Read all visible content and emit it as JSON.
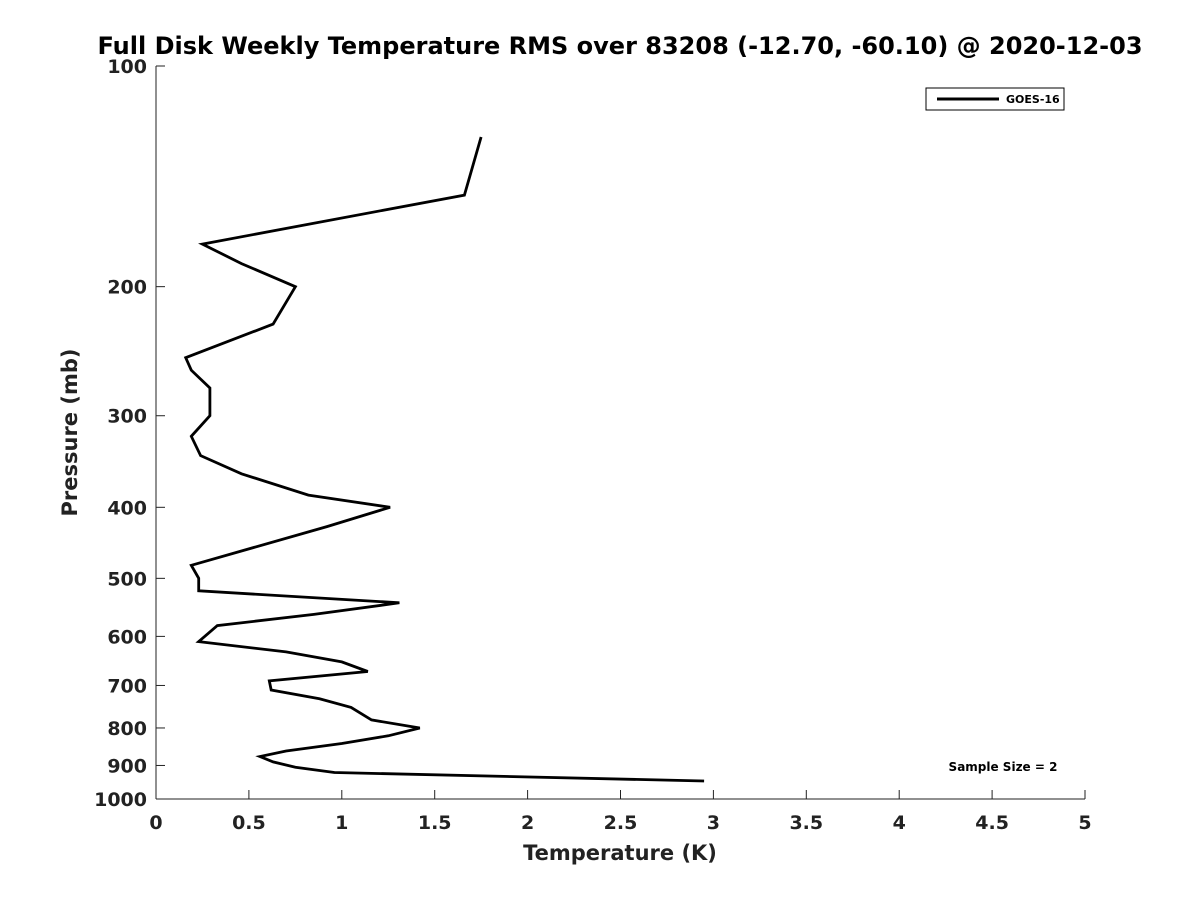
{
  "chart_data": {
    "type": "line",
    "title": "Full Disk Weekly Temperature RMS over 83208 (-12.70, -60.10) @ 2020-12-03",
    "xlabel": "Temperature (K)",
    "ylabel": "Pressure (mb)",
    "xlim": [
      0,
      5
    ],
    "ylim": [
      100,
      1000
    ],
    "y_scale": "log",
    "y_reversed": true,
    "xticks": [
      0,
      0.5,
      1,
      1.5,
      2,
      2.5,
      3,
      3.5,
      4,
      4.5,
      5
    ],
    "xtick_labels": [
      "0",
      "0.5",
      "1",
      "1.5",
      "2",
      "2.5",
      "3",
      "3.5",
      "4",
      "4.5",
      "5"
    ],
    "yticks": [
      100,
      200,
      300,
      400,
      500,
      600,
      700,
      800,
      900,
      1000
    ],
    "ytick_labels": [
      "100",
      "200",
      "300",
      "400",
      "500",
      "600",
      "700",
      "800",
      "900",
      "1000"
    ],
    "grid": false,
    "legend_position": "top-right",
    "annotation": "Sample Size = 2",
    "series": [
      {
        "name": "GOES-16",
        "color": "#000000",
        "points": [
          {
            "x": 1.75,
            "y": 125
          },
          {
            "x": 1.66,
            "y": 150
          },
          {
            "x": 0.25,
            "y": 175
          },
          {
            "x": 0.46,
            "y": 186
          },
          {
            "x": 0.75,
            "y": 200
          },
          {
            "x": 0.63,
            "y": 225
          },
          {
            "x": 0.16,
            "y": 250
          },
          {
            "x": 0.19,
            "y": 260
          },
          {
            "x": 0.29,
            "y": 275
          },
          {
            "x": 0.29,
            "y": 300
          },
          {
            "x": 0.19,
            "y": 320
          },
          {
            "x": 0.24,
            "y": 340
          },
          {
            "x": 0.46,
            "y": 360
          },
          {
            "x": 0.82,
            "y": 385
          },
          {
            "x": 1.26,
            "y": 400
          },
          {
            "x": 0.92,
            "y": 425
          },
          {
            "x": 0.19,
            "y": 480
          },
          {
            "x": 0.23,
            "y": 500
          },
          {
            "x": 0.23,
            "y": 520
          },
          {
            "x": 1.31,
            "y": 540
          },
          {
            "x": 0.85,
            "y": 560
          },
          {
            "x": 0.33,
            "y": 580
          },
          {
            "x": 0.23,
            "y": 610
          },
          {
            "x": 0.7,
            "y": 630
          },
          {
            "x": 1.0,
            "y": 650
          },
          {
            "x": 1.14,
            "y": 670
          },
          {
            "x": 0.61,
            "y": 690
          },
          {
            "x": 0.62,
            "y": 710
          },
          {
            "x": 0.88,
            "y": 730
          },
          {
            "x": 1.05,
            "y": 750
          },
          {
            "x": 1.16,
            "y": 780
          },
          {
            "x": 1.42,
            "y": 800
          },
          {
            "x": 1.25,
            "y": 820
          },
          {
            "x": 1.0,
            "y": 840
          },
          {
            "x": 0.7,
            "y": 860
          },
          {
            "x": 0.56,
            "y": 875
          },
          {
            "x": 0.63,
            "y": 890
          },
          {
            "x": 0.75,
            "y": 905
          },
          {
            "x": 0.96,
            "y": 920
          },
          {
            "x": 2.95,
            "y": 945
          }
        ]
      }
    ]
  }
}
